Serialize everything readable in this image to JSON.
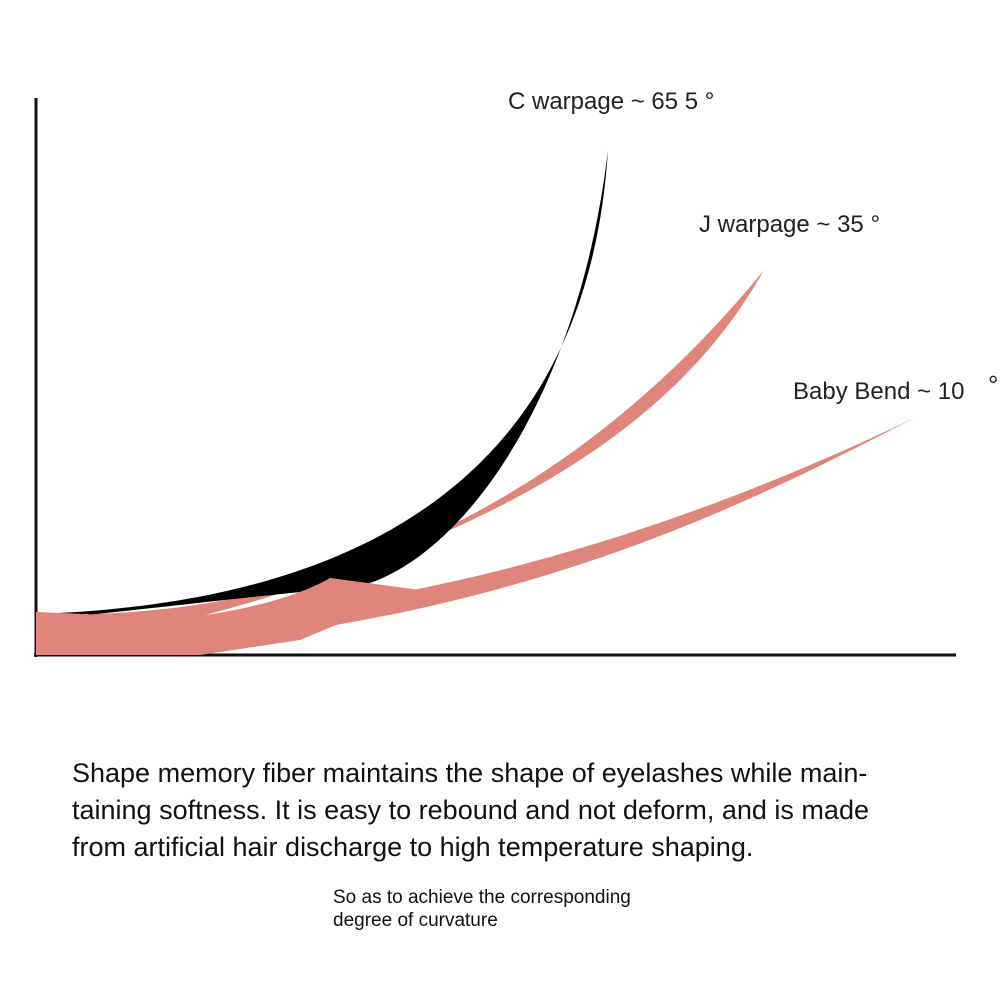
{
  "curves": [
    {
      "label": "C warpage ~ 65 5 °",
      "color": "#000000"
    },
    {
      "label": "J warpage ~ 35 °",
      "color": "#e0857a"
    },
    {
      "label": "Baby Bend ~ 10",
      "color": "#e0857a"
    }
  ],
  "description": {
    "line1": "Shape memory fiber maintains the shape of eyelashes while main-",
    "line2": "taining softness. It is easy to rebound and not deform, and is made",
    "line3": "from artificial hair discharge to high temperature shaping."
  },
  "note": {
    "line1": "So as to achieve the corresponding",
    "line2": "degree of curvature"
  },
  "colors": {
    "axis": "#111111",
    "lash_black": "#000000",
    "lash_pink": "#e0857a",
    "text": "#111111"
  }
}
